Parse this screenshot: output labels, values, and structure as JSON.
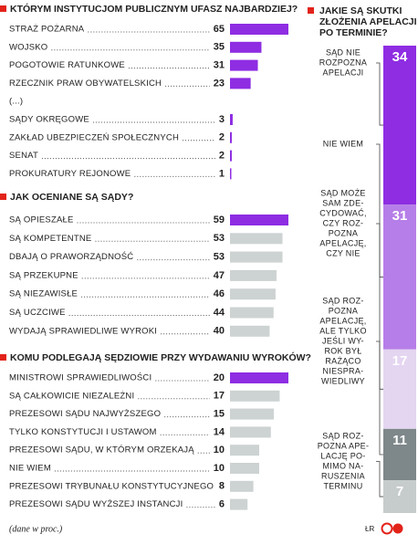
{
  "chart_data": [
    {
      "type": "bar",
      "title": "KTÓRYM INSTYTUCJOM PUBLICZNYM UFASZ NAJBARDZIEJ?",
      "categories": [
        "STRAŻ POŻARNA",
        "WOJSKO",
        "POGOTOWIE RATUNKOWE",
        "RZECZNIK PRAW OBYWATELSKICH",
        "(...)",
        "SĄDY OKRĘGOWE",
        "ZAKŁAD UBEZPIECZEŃ SPOŁECZNYCH",
        "SENAT",
        "PROKURATURY REJONOWE"
      ],
      "values": [
        65,
        35,
        31,
        23,
        null,
        3,
        2,
        2,
        1
      ],
      "colors": [
        "#8e2de2",
        "#8e2de2",
        "#8e2de2",
        "#8e2de2",
        null,
        "#8e2de2",
        "#8e2de2",
        "#8e2de2",
        "#8e2de2"
      ],
      "xlim": [
        0,
        65
      ]
    },
    {
      "type": "bar",
      "title": "JAK OCENIANE SĄ SĄDY?",
      "categories": [
        "SĄ OPIESZAŁE",
        "SĄ KOMPETENTNE",
        "DBAJĄ O PRAWORZĄDNOŚĆ",
        "SĄ PRZEKUPNE",
        "SĄ NIEZAWISŁE",
        "SĄ UCZCIWE",
        "WYDAJĄ SPRAWIEDLIWE WYROKI"
      ],
      "values": [
        59,
        53,
        53,
        47,
        46,
        44,
        40
      ],
      "colors": [
        "#8e2de2",
        "#cdd2d2",
        "#cdd2d2",
        "#cdd2d2",
        "#cdd2d2",
        "#cdd2d2",
        "#cdd2d2"
      ],
      "xlim": [
        0,
        59
      ]
    },
    {
      "type": "bar",
      "title": "KOMU PODLEGAJĄ SĘDZIOWIE PRZY WYDAWANIU WYROKÓW?",
      "categories": [
        "MINISTROWI SPRAWIEDLIWOŚCI",
        "SĄ CAŁKOWICIE NIEZALEŻNI",
        "PREZESOWI SĄDU NAJWYŻSZEGO",
        "TYLKO KONSTYTUCJI I USTAWOM",
        "PREZESOWI SĄDU, W KTÓRYM ORZEKAJĄ",
        "NIE WIEM",
        "PREZESOWI TRYBUNAŁU KONSTYTUCYJNEGO",
        "PREZESOWI SĄDU WYŻSZEJ INSTANCJI"
      ],
      "values": [
        20,
        17,
        15,
        14,
        10,
        10,
        8,
        6
      ],
      "colors": [
        "#8e2de2",
        "#cdd2d2",
        "#cdd2d2",
        "#cdd2d2",
        "#cdd2d2",
        "#cdd2d2",
        "#cdd2d2",
        "#cdd2d2"
      ],
      "xlim": [
        0,
        20
      ]
    },
    {
      "type": "stacked-bar",
      "title": [
        "JAKIE SĄ SKUTKI",
        "ZŁOŻENIA APELACJI",
        "PO TERMINIE?"
      ],
      "categories": [
        [
          "SĄD NIE",
          "ROZPOZNA",
          "APELACJI"
        ],
        [
          "NIE WIEM"
        ],
        [
          "SĄD MOŻE",
          "SAM ZDE-",
          "CYDOWAĆ,",
          "CZY ROZ-",
          "POZNA",
          "APELACJĘ,",
          "CZY NIE"
        ],
        [
          "SĄD ROZ-",
          "POZNA",
          "APELACJĘ,",
          "ALE TYLKO",
          "JEŚLI WY-",
          "ROK BYŁ",
          "RAŻĄCO",
          "NIESPRA-",
          "WIEDLIWY"
        ],
        [
          "SĄD ROZ-",
          "POZNA APE-",
          "LACJĘ PO-",
          "MIMO NA-",
          "RUSZENIA",
          "TERMINU"
        ]
      ],
      "values": [
        34,
        31,
        17,
        11,
        7
      ],
      "colors": [
        "#8e2de2",
        "#b67ee8",
        "#e4d5f1",
        "#7e878a",
        "#c6cbcb"
      ],
      "ylim": [
        0,
        100
      ]
    }
  ],
  "footer": {
    "note": "(dane w proc.)",
    "author": "ŁR"
  }
}
